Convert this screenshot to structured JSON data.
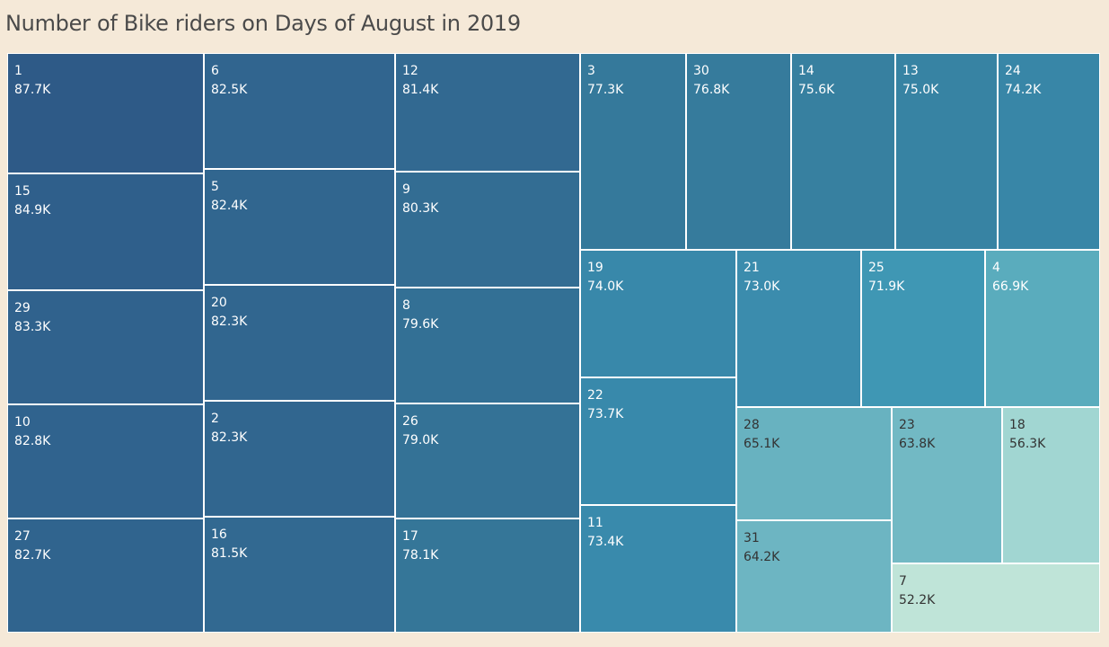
{
  "title": "Number of Bike riders on Days of August in 2019",
  "chart_data": {
    "type": "treemap",
    "title": "Number of Bike riders on Days of August in 2019",
    "items": [
      {
        "label": "1",
        "value_label": "87.7K",
        "value": 87700,
        "color": "#2e5a87",
        "text_color": "#ffffff"
      },
      {
        "label": "15",
        "value_label": "84.9K",
        "value": 84900,
        "color": "#2f5f8b",
        "text_color": "#ffffff"
      },
      {
        "label": "29",
        "value_label": "83.3K",
        "value": 83300,
        "color": "#30628d",
        "text_color": "#ffffff"
      },
      {
        "label": "10",
        "value_label": "82.8K",
        "value": 82800,
        "color": "#30638e",
        "text_color": "#ffffff"
      },
      {
        "label": "27",
        "value_label": "82.7K",
        "value": 82700,
        "color": "#30648e",
        "text_color": "#ffffff"
      },
      {
        "label": "6",
        "value_label": "82.5K",
        "value": 82500,
        "color": "#31658f",
        "text_color": "#ffffff"
      },
      {
        "label": "5",
        "value_label": "82.4K",
        "value": 82400,
        "color": "#31668f",
        "text_color": "#ffffff"
      },
      {
        "label": "20",
        "value_label": "82.3K",
        "value": 82300,
        "color": "#31668f",
        "text_color": "#ffffff"
      },
      {
        "label": "2",
        "value_label": "82.3K",
        "value": 82300,
        "color": "#31668f",
        "text_color": "#ffffff"
      },
      {
        "label": "16",
        "value_label": "81.5K",
        "value": 81500,
        "color": "#326991",
        "text_color": "#ffffff"
      },
      {
        "label": "12",
        "value_label": "81.4K",
        "value": 81400,
        "color": "#326991",
        "text_color": "#ffffff"
      },
      {
        "label": "9",
        "value_label": "80.3K",
        "value": 80300,
        "color": "#336d93",
        "text_color": "#ffffff"
      },
      {
        "label": "8",
        "value_label": "79.6K",
        "value": 79600,
        "color": "#337095",
        "text_color": "#ffffff"
      },
      {
        "label": "26",
        "value_label": "79.0K",
        "value": 79000,
        "color": "#347296",
        "text_color": "#ffffff"
      },
      {
        "label": "17",
        "value_label": "78.1K",
        "value": 78100,
        "color": "#357698",
        "text_color": "#ffffff"
      },
      {
        "label": "3",
        "value_label": "77.3K",
        "value": 77300,
        "color": "#35799b",
        "text_color": "#ffffff"
      },
      {
        "label": "30",
        "value_label": "76.8K",
        "value": 76800,
        "color": "#367b9c",
        "text_color": "#ffffff"
      },
      {
        "label": "14",
        "value_label": "75.6K",
        "value": 75600,
        "color": "#3780a0",
        "text_color": "#ffffff"
      },
      {
        "label": "13",
        "value_label": "75.0K",
        "value": 75000,
        "color": "#3783a3",
        "text_color": "#ffffff"
      },
      {
        "label": "24",
        "value_label": "74.2K",
        "value": 74200,
        "color": "#3886a7",
        "text_color": "#ffffff"
      },
      {
        "label": "19",
        "value_label": "74.0K",
        "value": 74000,
        "color": "#3888aa",
        "text_color": "#ffffff"
      },
      {
        "label": "22",
        "value_label": "73.7K",
        "value": 73700,
        "color": "#3889ab",
        "text_color": "#ffffff"
      },
      {
        "label": "11",
        "value_label": "73.4K",
        "value": 73400,
        "color": "#398aac",
        "text_color": "#ffffff"
      },
      {
        "label": "21",
        "value_label": "73.0K",
        "value": 73000,
        "color": "#3b8cad",
        "text_color": "#ffffff"
      },
      {
        "label": "25",
        "value_label": "71.9K",
        "value": 71900,
        "color": "#3f97b4",
        "text_color": "#ffffff"
      },
      {
        "label": "4",
        "value_label": "66.9K",
        "value": 66900,
        "color": "#5aacbd",
        "text_color": "#ffffff"
      },
      {
        "label": "28",
        "value_label": "65.1K",
        "value": 65100,
        "color": "#68b2c0",
        "text_color": "#333333"
      },
      {
        "label": "31",
        "value_label": "64.2K",
        "value": 64200,
        "color": "#6db5c2",
        "text_color": "#333333"
      },
      {
        "label": "23",
        "value_label": "63.8K",
        "value": 63800,
        "color": "#72b9c4",
        "text_color": "#333333"
      },
      {
        "label": "18",
        "value_label": "56.3K",
        "value": 56300,
        "color": "#a1d6d2",
        "text_color": "#333333"
      },
      {
        "label": "7",
        "value_label": "52.2K",
        "value": 52200,
        "color": "#bfe4d8",
        "text_color": "#333333"
      }
    ]
  }
}
